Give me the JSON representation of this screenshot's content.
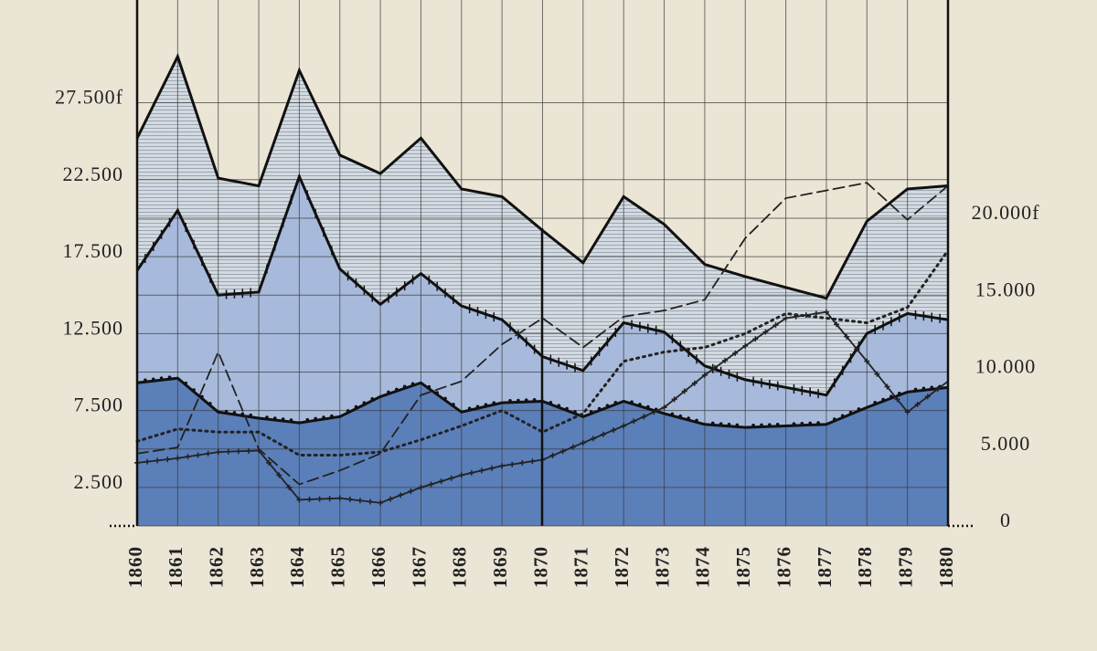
{
  "chart_data": {
    "type": "area",
    "stacked": true,
    "x": [
      1860,
      1861,
      1862,
      1863,
      1864,
      1865,
      1866,
      1867,
      1868,
      1869,
      1870,
      1871,
      1872,
      1873,
      1874,
      1875,
      1876,
      1877,
      1878,
      1879,
      1880
    ],
    "xlim": [
      1860,
      1880
    ],
    "ylim": [
      0,
      34000
    ],
    "yticks": [
      {
        "value": 2500,
        "label": "2.500"
      },
      {
        "value": 7500,
        "label": "7.500"
      },
      {
        "value": 12500,
        "label": "12.500"
      },
      {
        "value": 17500,
        "label": "17.500"
      },
      {
        "value": 22500,
        "label": "22.500"
      },
      {
        "value": 27500,
        "label": "27.500f"
      }
    ],
    "y2lim": [
      0,
      34000
    ],
    "y2ticks": [
      0,
      {
        "value": 5000,
        "label": "5.000"
      },
      {
        "value": 10000,
        "label": "10.000"
      },
      {
        "value": 15000,
        "label": "15.000"
      },
      {
        "value": 20000,
        "label": "20.000f"
      }
    ],
    "grid": true,
    "series": [
      {
        "color": "#5b7fb9",
        "style": "dotted-edge",
        "values": [
          9300,
          9600,
          7400,
          7000,
          6700,
          7100,
          8400,
          9300,
          7400,
          8000,
          8100,
          7100,
          8100,
          7300,
          6600,
          6400,
          6500,
          6600,
          7700,
          8700,
          9000
        ]
      },
      {
        "color": "#a7badb",
        "style": "crossed-edge",
        "values": [
          7300,
          10900,
          7600,
          8200,
          16000,
          9600,
          6000,
          7100,
          6900,
          5400,
          2900,
          3000,
          5100,
          5300,
          3800,
          3100,
          2500,
          1900,
          4800,
          5100,
          4400
        ]
      },
      {
        "color": "#d3dae0",
        "style": "hatched",
        "values": [
          8600,
          10000,
          7600,
          6900,
          6900,
          7400,
          8500,
          8800,
          7600,
          8000,
          8200,
          7000,
          8200,
          7000,
          6600,
          6700,
          6500,
          6300,
          7300,
          8100,
          8700
        ]
      },
      {
        "type": "line",
        "axis": "y2",
        "color": "#222222",
        "style": "dashed",
        "values": [
          4700,
          5100,
          11300,
          5000,
          2700,
          3600,
          4700,
          8500,
          9400,
          11800,
          13500,
          11600,
          13600,
          14000,
          14700,
          18700,
          21300,
          21800,
          22300,
          19900,
          22100
        ]
      },
      {
        "type": "line",
        "axis": "y2",
        "color": "#222222",
        "style": "dotted",
        "values": [
          5500,
          6300,
          6100,
          6100,
          4600,
          4600,
          4800,
          5600,
          6500,
          7500,
          6100,
          7300,
          10700,
          11300,
          11600,
          12500,
          13800,
          13500,
          13200,
          14200,
          17900
        ]
      },
      {
        "type": "line",
        "axis": "y2",
        "color": "#222222",
        "style": "crossed",
        "values": [
          4100,
          4400,
          4800,
          4900,
          1700,
          1800,
          1500,
          2500,
          3300,
          3900,
          4300,
          5400,
          6500,
          7700,
          9800,
          11700,
          13500,
          13900,
          10700,
          7400,
          9400
        ]
      }
    ]
  }
}
